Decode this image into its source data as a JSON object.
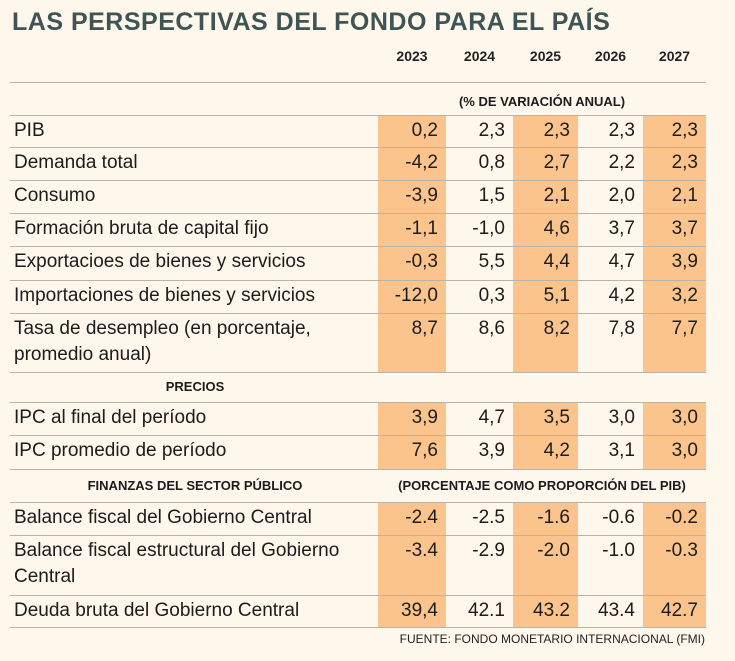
{
  "title": "LAS PERSPECTIVAS DEL FONDO PARA EL PAÍS",
  "years": [
    "2023",
    "2024",
    "2025",
    "2026",
    "2027"
  ],
  "sections": [
    {
      "note": "(% DE VARIACIÓN ANUAL)",
      "rows": [
        {
          "label": "PIB",
          "values": [
            "0,2",
            "2,3",
            "2,3",
            "2,3",
            "2,3"
          ]
        },
        {
          "label": "Demanda total",
          "values": [
            "-4,2",
            "0,8",
            "2,7",
            "2,2",
            "2,3"
          ]
        },
        {
          "label": "Consumo",
          "values": [
            "-3,9",
            "1,5",
            "2,1",
            "2,0",
            "2,1"
          ]
        },
        {
          "label": "Formación bruta de capital fijo",
          "values": [
            "-1,1",
            "-1,0",
            "4,6",
            "3,7",
            "3,7"
          ]
        },
        {
          "label": "Exportacioes de bienes y servicios",
          "values": [
            "-0,3",
            "5,5",
            "4,4",
            "4,7",
            "3,9"
          ]
        },
        {
          "label": "Importaciones de bienes y servicios",
          "values": [
            "-12,0",
            "0,3",
            "5,1",
            "4,2",
            "3,2"
          ]
        },
        {
          "label": "Tasa de desempleo (en porcentaje, promedio anual)",
          "values": [
            "8,7",
            "8,6",
            "8,2",
            "7,8",
            "7,7"
          ]
        }
      ]
    },
    {
      "label": "PRECIOS",
      "rows": [
        {
          "label": "IPC al final del período",
          "values": [
            "3,9",
            "4,7",
            "3,5",
            "3,0",
            "3,0"
          ]
        },
        {
          "label": "IPC promedio de período",
          "values": [
            "7,6",
            "3,9",
            "4,2",
            "3,1",
            "3,0"
          ]
        }
      ]
    },
    {
      "label": "FINANZAS DEL SECTOR PÚBLICO",
      "note": "(PORCENTAJE COMO PROPORCIÓN DEL PIB)",
      "rows": [
        {
          "label": "Balance fiscal del Gobierno Central",
          "values": [
            "-2.4",
            "-2.5",
            "-1.6",
            "-0.6",
            "-0.2"
          ]
        },
        {
          "label": "Balance fiscal estructural del Gobierno Central",
          "values": [
            "-3.4",
            "-2.9",
            "-2.0",
            "-1.0",
            "-0.3"
          ]
        },
        {
          "label": "Deuda bruta del Gobierno Central",
          "values": [
            "39,4",
            "42.1",
            "43.2",
            "43.4",
            "42.7"
          ]
        }
      ]
    }
  ],
  "source": "FUENTE: FONDO MONETARIO INTERNACIONAL (FMI)"
}
